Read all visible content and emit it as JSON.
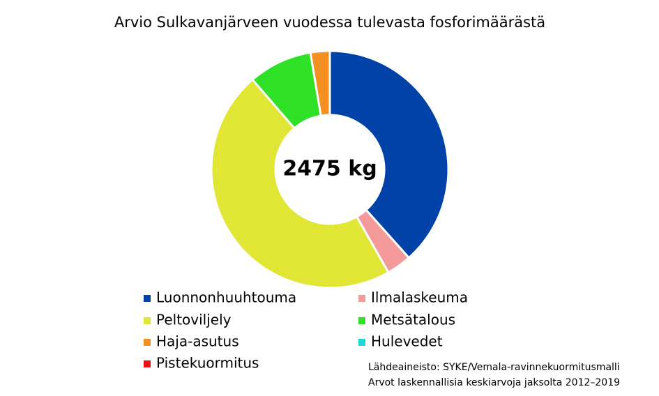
{
  "chart_data": {
    "type": "donut",
    "title": "Arvio Sulkavanjärveen vuodessa tulevasta fosforimäärästä",
    "center_label": "2475 kg",
    "categories": [
      "Luonnonhuuhtouma",
      "Ilmalaskeuma",
      "Peltoviljely",
      "Metsätalous",
      "Haja-asutus",
      "Hulevedet",
      "Pistekuormitus"
    ],
    "values": [
      950,
      84,
      1161,
      215,
      65,
      0,
      0
    ],
    "colors": [
      "#0042a8",
      "#f59a9a",
      "#e1e534",
      "#2ee126",
      "#f39021",
      "#1fd8d0",
      "#f01010"
    ],
    "source_lines": [
      "Lähdeaineisto: SYKE/Vemala-ravinnekuormitusmalli",
      "Arvot laskennallisia keskiarvoja jaksolta 2012–2019"
    ]
  }
}
